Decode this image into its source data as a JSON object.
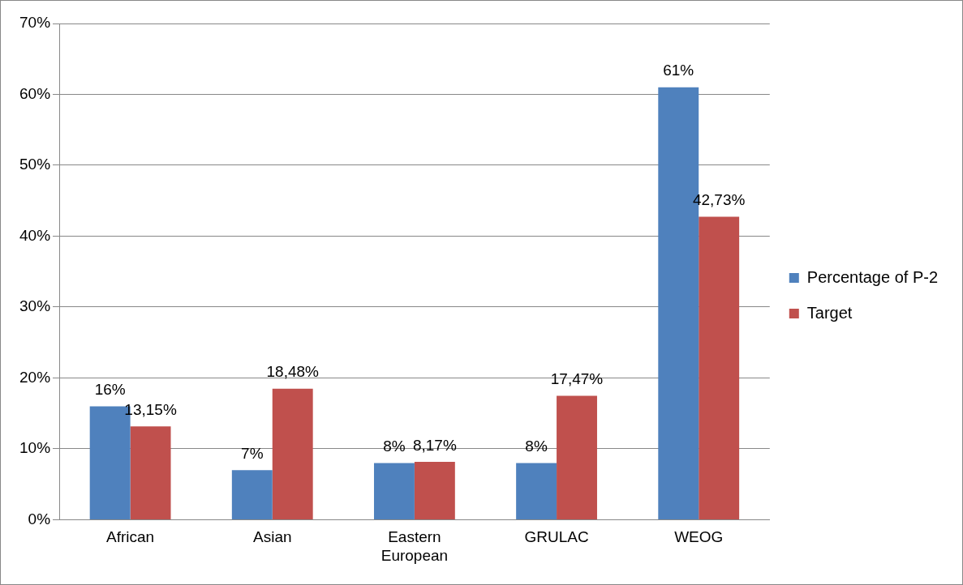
{
  "chart_data": {
    "type": "bar",
    "categories": [
      "African",
      "Asian",
      "Eastern European",
      "GRULAC",
      "WEOG"
    ],
    "series": [
      {
        "name": "Percentage of P-2",
        "color": "#4f81bd",
        "values": [
          16,
          7,
          8,
          8,
          61
        ],
        "value_labels": [
          "16%",
          "7%",
          "8%",
          "8%",
          "61%"
        ]
      },
      {
        "name": "Target",
        "color": "#c0504d",
        "values": [
          13.15,
          18.48,
          8.17,
          17.47,
          42.73
        ],
        "value_labels": [
          "13,15%",
          "18,48%",
          "8,17%",
          "17,47%",
          "42,73%"
        ]
      }
    ],
    "ylim": [
      0,
      70
    ],
    "yticks": [
      {
        "value": 0,
        "label": "0%"
      },
      {
        "value": 10,
        "label": "10%"
      },
      {
        "value": 20,
        "label": "20%"
      },
      {
        "value": 30,
        "label": "30%"
      },
      {
        "value": 40,
        "label": "40%"
      },
      {
        "value": 50,
        "label": "50%"
      },
      {
        "value": 60,
        "label": "60%"
      },
      {
        "value": 70,
        "label": "70%"
      }
    ],
    "grid": "y",
    "legend": "right"
  }
}
